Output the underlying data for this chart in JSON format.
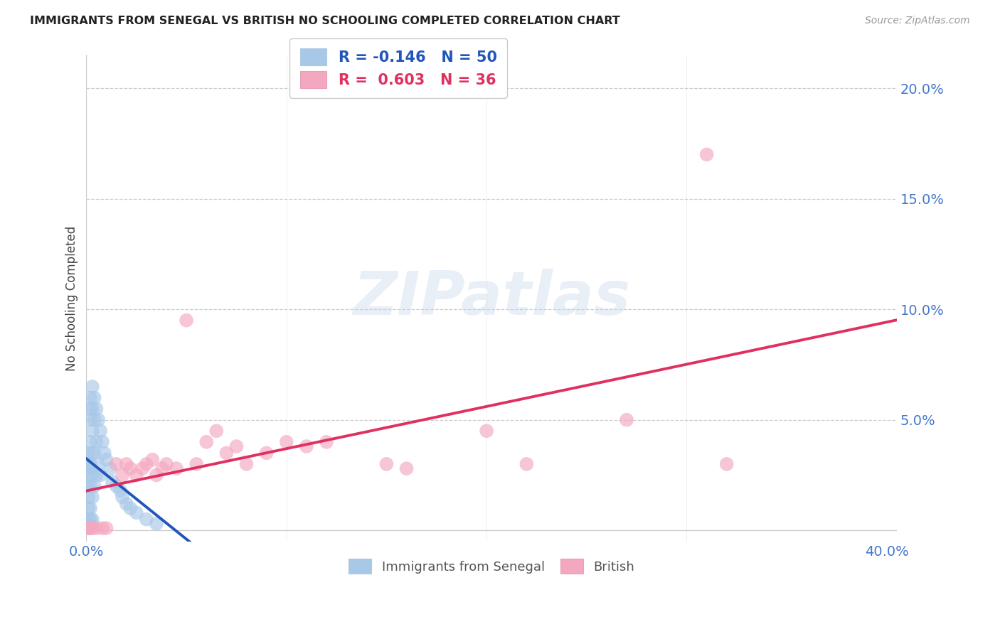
{
  "title": "IMMIGRANTS FROM SENEGAL VS BRITISH NO SCHOOLING COMPLETED CORRELATION CHART",
  "source": "Source: ZipAtlas.com",
  "ylabel": "No Schooling Completed",
  "xlim": [
    0.0,
    0.405
  ],
  "ylim": [
    -0.005,
    0.215
  ],
  "senegal_color": "#a8c8e8",
  "british_color": "#f4a8c0",
  "senegal_line_color": "#2255bb",
  "british_line_color": "#e03060",
  "senegal_R": -0.146,
  "senegal_N": 50,
  "british_R": 0.603,
  "british_N": 36,
  "watermark_text": "ZIPatlas",
  "background_color": "#ffffff",
  "grid_color": "#cccccc",
  "title_color": "#222222",
  "axis_tick_color": "#4477cc",
  "ylabel_color": "#444444",
  "senegal_x": [
    0.001,
    0.001,
    0.001,
    0.001,
    0.001,
    0.001,
    0.001,
    0.001,
    0.001,
    0.001,
    0.002,
    0.002,
    0.002,
    0.002,
    0.002,
    0.002,
    0.002,
    0.002,
    0.002,
    0.003,
    0.003,
    0.003,
    0.003,
    0.003,
    0.003,
    0.003,
    0.004,
    0.004,
    0.004,
    0.004,
    0.005,
    0.005,
    0.005,
    0.006,
    0.006,
    0.007,
    0.007,
    0.008,
    0.009,
    0.01,
    0.012,
    0.013,
    0.015,
    0.017,
    0.018,
    0.02,
    0.022,
    0.025,
    0.03,
    0.035
  ],
  "senegal_y": [
    0.035,
    0.03,
    0.028,
    0.025,
    0.02,
    0.015,
    0.01,
    0.005,
    0.003,
    0.001,
    0.06,
    0.055,
    0.05,
    0.04,
    0.03,
    0.02,
    0.01,
    0.005,
    0.002,
    0.065,
    0.055,
    0.045,
    0.035,
    0.025,
    0.015,
    0.005,
    0.06,
    0.05,
    0.035,
    0.02,
    0.055,
    0.04,
    0.025,
    0.05,
    0.03,
    0.045,
    0.025,
    0.04,
    0.035,
    0.032,
    0.028,
    0.022,
    0.02,
    0.018,
    0.015,
    0.012,
    0.01,
    0.008,
    0.005,
    0.003
  ],
  "british_x": [
    0.001,
    0.002,
    0.003,
    0.005,
    0.008,
    0.01,
    0.015,
    0.018,
    0.02,
    0.022,
    0.025,
    0.028,
    0.03,
    0.033,
    0.035,
    0.038,
    0.04,
    0.045,
    0.05,
    0.055,
    0.06,
    0.065,
    0.07,
    0.075,
    0.08,
    0.09,
    0.1,
    0.11,
    0.12,
    0.15,
    0.16,
    0.2,
    0.22,
    0.27,
    0.31,
    0.32
  ],
  "british_y": [
    0.001,
    0.001,
    0.001,
    0.001,
    0.001,
    0.001,
    0.03,
    0.025,
    0.03,
    0.028,
    0.025,
    0.028,
    0.03,
    0.032,
    0.025,
    0.028,
    0.03,
    0.028,
    0.095,
    0.03,
    0.04,
    0.045,
    0.035,
    0.038,
    0.03,
    0.035,
    0.04,
    0.038,
    0.04,
    0.03,
    0.028,
    0.045,
    0.03,
    0.05,
    0.17,
    0.03
  ]
}
